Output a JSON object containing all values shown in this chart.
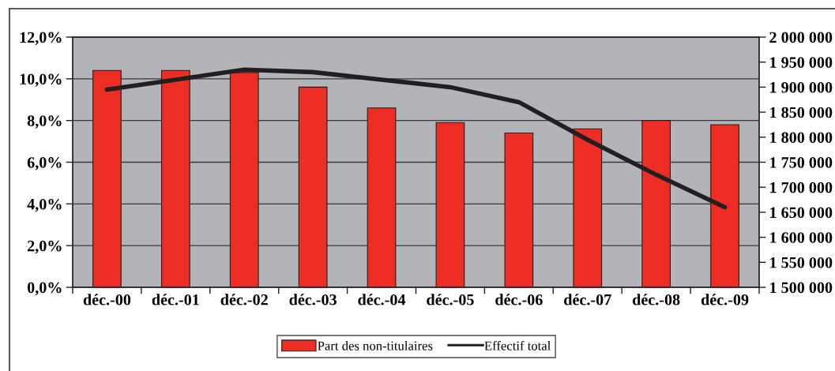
{
  "chart_data": {
    "type": "bar",
    "categories": [
      "déc.-00",
      "déc.-01",
      "déc.-02",
      "déc.-03",
      "déc.-04",
      "déc.-05",
      "déc.-06",
      "déc.-07",
      "déc.-08",
      "déc.-09"
    ],
    "series": [
      {
        "name": "Part des non-titulaires",
        "color": "#ee2e24",
        "values": [
          10.4,
          10.4,
          10.3,
          9.6,
          8.6,
          7.9,
          7.4,
          7.6,
          8.0,
          7.8
        ]
      },
      {
        "name": "Effectif total",
        "type": "line",
        "axis": "y2",
        "color": "#231f20",
        "values": [
          1895000,
          1915000,
          1935000,
          1930000,
          1915000,
          1900000,
          1870000,
          1795000,
          1725000,
          1660000
        ]
      }
    ],
    "ylim": [
      0,
      12
    ],
    "yticks": [
      {
        "value": 0,
        "label": "0,0%"
      },
      {
        "value": 2,
        "label": "2,0%"
      },
      {
        "value": 4,
        "label": "4,0%"
      },
      {
        "value": 6,
        "label": "6,0%"
      },
      {
        "value": 8,
        "label": "8,0%"
      },
      {
        "value": 10,
        "label": "10,0%"
      },
      {
        "value": 12,
        "label": "12,0%"
      }
    ],
    "y2lim": [
      1500000,
      2000000
    ],
    "y2ticks": [
      {
        "value": 1500000,
        "label": "1 500 000"
      },
      {
        "value": 1550000,
        "label": "1 550 000"
      },
      {
        "value": 1600000,
        "label": "1 600 000"
      },
      {
        "value": 1650000,
        "label": "1 650 000"
      },
      {
        "value": 1700000,
        "label": "1 700 000"
      },
      {
        "value": 1750000,
        "label": "1 750 000"
      },
      {
        "value": 1800000,
        "label": "1 800 000"
      },
      {
        "value": 1850000,
        "label": "1 850 000"
      },
      {
        "value": 1900000,
        "label": "1 900 000"
      },
      {
        "value": 1950000,
        "label": "1 950 000"
      },
      {
        "value": 2000000,
        "label": "2 000 000"
      }
    ],
    "grid": "y",
    "legend": "bottom"
  }
}
